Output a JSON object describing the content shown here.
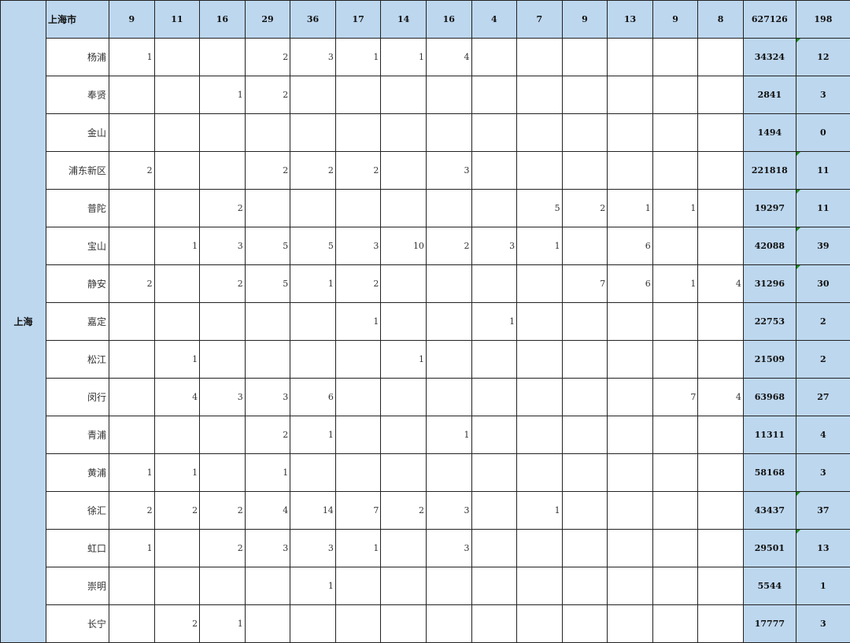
{
  "province": "上海",
  "header": {
    "city": "上海市",
    "values": [
      "9",
      "11",
      "16",
      "29",
      "36",
      "17",
      "14",
      "16",
      "4",
      "7",
      "9",
      "13",
      "9",
      "8"
    ],
    "total": "627126",
    "count": "198"
  },
  "colors": {
    "header_bg": "#bdd7ee",
    "flag": "#1a8a1a"
  },
  "rows": [
    {
      "district": "杨浦",
      "values": [
        "1",
        "",
        "",
        "2",
        "3",
        "1",
        "1",
        "4",
        "",
        "",
        "",
        "",
        "",
        ""
      ],
      "total": "34324",
      "count": "12",
      "flagged": true
    },
    {
      "district": "奉贤",
      "values": [
        "",
        "",
        "1",
        "2",
        "",
        "",
        "",
        "",
        "",
        "",
        "",
        "",
        "",
        ""
      ],
      "total": "2841",
      "count": "3",
      "flagged": false
    },
    {
      "district": "金山",
      "values": [
        "",
        "",
        "",
        "",
        "",
        "",
        "",
        "",
        "",
        "",
        "",
        "",
        "",
        ""
      ],
      "total": "1494",
      "count": "0",
      "flagged": false
    },
    {
      "district": "浦东新区",
      "values": [
        "2",
        "",
        "",
        "2",
        "2",
        "2",
        "",
        "3",
        "",
        "",
        "",
        "",
        "",
        ""
      ],
      "total": "221818",
      "count": "11",
      "flagged": true
    },
    {
      "district": "普陀",
      "values": [
        "",
        "",
        "2",
        "",
        "",
        "",
        "",
        "",
        "",
        "5",
        "2",
        "1",
        "1",
        ""
      ],
      "total": "19297",
      "count": "11",
      "flagged": true
    },
    {
      "district": "宝山",
      "values": [
        "",
        "1",
        "3",
        "5",
        "5",
        "3",
        "10",
        "2",
        "3",
        "1",
        "",
        "6",
        "",
        ""
      ],
      "total": "42088",
      "count": "39",
      "flagged": true
    },
    {
      "district": "静安",
      "values": [
        "2",
        "",
        "2",
        "5",
        "1",
        "2",
        "",
        "",
        "",
        "",
        "7",
        "6",
        "1",
        "4"
      ],
      "total": "31296",
      "count": "30",
      "flagged": true
    },
    {
      "district": "嘉定",
      "values": [
        "",
        "",
        "",
        "",
        "",
        "1",
        "",
        "",
        "1",
        "",
        "",
        "",
        "",
        ""
      ],
      "total": "22753",
      "count": "2",
      "flagged": false
    },
    {
      "district": "松江",
      "values": [
        "",
        "1",
        "",
        "",
        "",
        "",
        "1",
        "",
        "",
        "",
        "",
        "",
        "",
        ""
      ],
      "total": "21509",
      "count": "2",
      "flagged": false
    },
    {
      "district": "闵行",
      "values": [
        "",
        "4",
        "3",
        "3",
        "6",
        "",
        "",
        "",
        "",
        "",
        "",
        "",
        "7",
        "4"
      ],
      "total": "63968",
      "count": "27",
      "flagged": false
    },
    {
      "district": "青浦",
      "values": [
        "",
        "",
        "",
        "2",
        "1",
        "",
        "",
        "1",
        "",
        "",
        "",
        "",
        "",
        ""
      ],
      "total": "11311",
      "count": "4",
      "flagged": false
    },
    {
      "district": "黄浦",
      "values": [
        "1",
        "1",
        "",
        "1",
        "",
        "",
        "",
        "",
        "",
        "",
        "",
        "",
        "",
        ""
      ],
      "total": "58168",
      "count": "3",
      "flagged": false
    },
    {
      "district": "徐汇",
      "values": [
        "2",
        "2",
        "2",
        "4",
        "14",
        "7",
        "2",
        "3",
        "",
        "1",
        "",
        "",
        "",
        ""
      ],
      "total": "43437",
      "count": "37",
      "flagged": true
    },
    {
      "district": "虹口",
      "values": [
        "1",
        "",
        "2",
        "3",
        "3",
        "1",
        "",
        "3",
        "",
        "",
        "",
        "",
        "",
        ""
      ],
      "total": "29501",
      "count": "13",
      "flagged": true
    },
    {
      "district": "崇明",
      "values": [
        "",
        "",
        "",
        "",
        "1",
        "",
        "",
        "",
        "",
        "",
        "",
        "",
        "",
        ""
      ],
      "total": "5544",
      "count": "1",
      "flagged": false
    },
    {
      "district": "长宁",
      "values": [
        "",
        "2",
        "1",
        "",
        "",
        "",
        "",
        "",
        "",
        "",
        "",
        "",
        "",
        ""
      ],
      "total": "17777",
      "count": "3",
      "flagged": false
    }
  ]
}
